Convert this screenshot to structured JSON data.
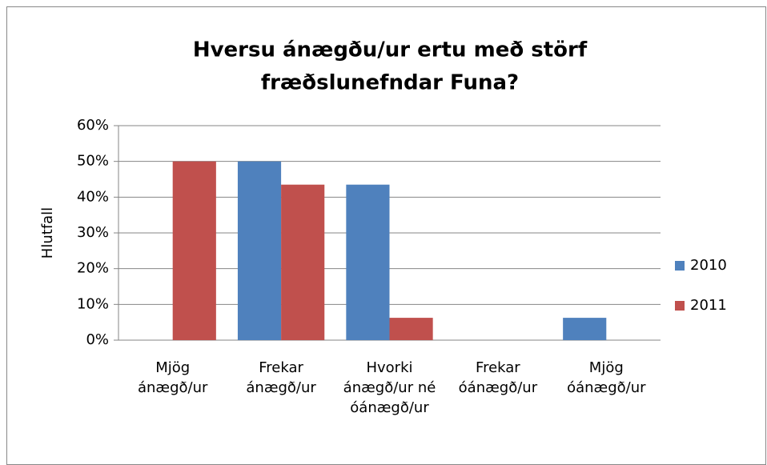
{
  "chart_data": {
    "type": "bar",
    "title": [
      "Hversu ánægðu/ur ertu með störf",
      "fræðslunefndar Funa?"
    ],
    "y_label": "Hlutfall",
    "categories": [
      "Mjög ánægð/ur",
      "Frekar ánægð/ur",
      "Hvorki ánægð/ur né óánægð/ur",
      "Frekar óánægð/ur",
      "Mjög óánægð/ur"
    ],
    "series": [
      {
        "name": "2010",
        "color": "#4f81bd",
        "values": [
          0,
          50,
          43.5,
          0,
          6.25
        ]
      },
      {
        "name": "2011",
        "color": "#c0504d",
        "values": [
          50,
          43.5,
          6.25,
          0,
          0
        ]
      }
    ],
    "ylim": [
      0,
      60
    ],
    "yticks": [
      {
        "value": 0,
        "label": "0%"
      },
      {
        "value": 10,
        "label": "10%"
      },
      {
        "value": 20,
        "label": "20%"
      },
      {
        "value": 30,
        "label": "30%"
      },
      {
        "value": 40,
        "label": "40%"
      },
      {
        "value": 50,
        "label": "50%"
      },
      {
        "value": 60,
        "label": "60%"
      }
    ],
    "grid": true,
    "legend": "right"
  }
}
